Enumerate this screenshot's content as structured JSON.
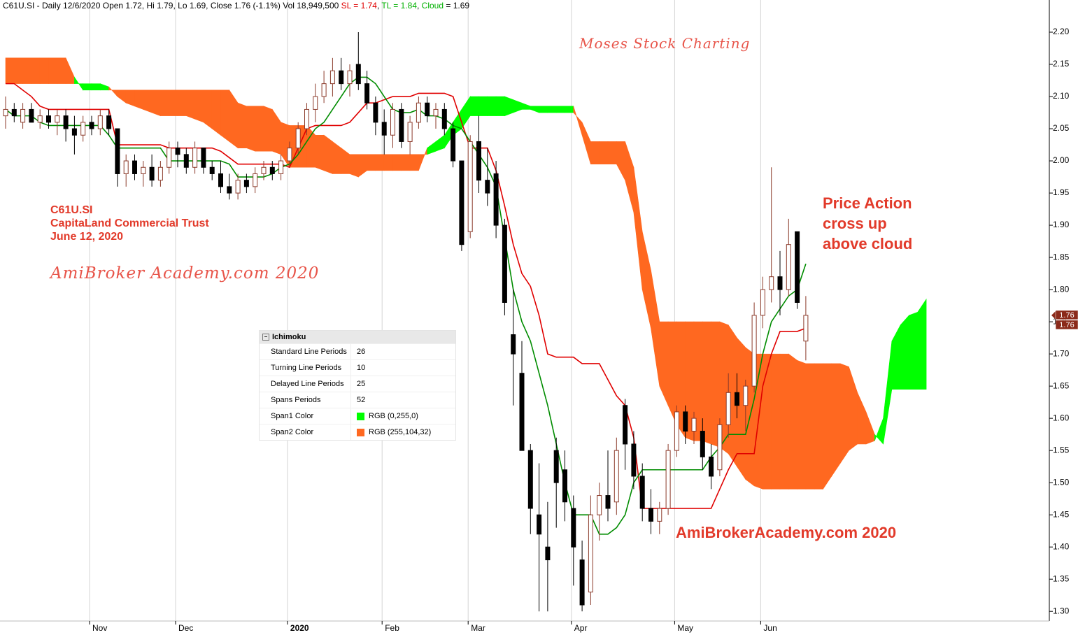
{
  "chart_data": {
    "type": "candlestick",
    "header": {
      "info": "C61U.SI - Daily 12/6/2020 Open 1.72, Hi 1.79, Lo 1.69, Close 1.76 (-1.1%) Vol 18,949,500",
      "sl_value": "= 1.74",
      "tl_value": "= 1.84",
      "cloud_value": "= 1.69"
    },
    "annotations": [
      "Moses Stock Charting",
      "C61U.SI",
      "CapitaLand Commercial Trust",
      "June 12, 2020",
      "AmiBroker Academy.com 2020",
      "Price Action",
      "cross up",
      "above cloud",
      "AmiBrokerAcademy.com 2020"
    ],
    "categories": [
      null,
      null,
      null,
      null,
      null,
      null,
      null,
      null,
      null,
      null,
      "Nov",
      null,
      null,
      null,
      null,
      null,
      null,
      null,
      null,
      null,
      "Dec",
      null,
      null,
      null,
      null,
      null,
      null,
      null,
      null,
      null,
      null,
      null,
      null,
      "2020",
      null,
      null,
      null,
      null,
      null,
      null,
      null,
      null,
      null,
      null,
      "Feb",
      null,
      null,
      null,
      null,
      null,
      null,
      null,
      null,
      null,
      "Mar",
      null,
      null,
      null,
      null,
      null,
      null,
      null,
      null,
      null,
      null,
      null,
      "Apr",
      null,
      null,
      null,
      null,
      null,
      null,
      null,
      null,
      null,
      null,
      null,
      "May",
      null,
      null,
      null,
      null,
      null,
      null,
      null,
      null,
      null,
      "Jun",
      null,
      null,
      null,
      null,
      null,
      null,
      null,
      null,
      null,
      null,
      null,
      null,
      null,
      null,
      null,
      null,
      null,
      null,
      null
    ],
    "open": [
      2.07,
      2.08,
      2.06,
      2.08,
      2.06,
      2.07,
      2.06,
      2.07,
      2.05,
      2.04,
      2.06,
      2.05,
      2.07,
      2.05,
      1.98,
      2.0,
      1.98,
      1.99,
      1.97,
      1.99,
      2.02,
      2.01,
      1.99,
      2.02,
      1.99,
      1.98,
      1.96,
      1.95,
      1.97,
      1.96,
      1.98,
      1.99,
      1.98,
      2.0,
      2.02,
      2.05,
      2.08,
      2.1,
      2.12,
      2.14,
      2.12,
      2.15,
      2.12,
      2.09,
      2.06,
      2.04,
      2.08,
      2.03,
      2.06,
      2.09,
      2.07,
      2.08,
      2.05,
      2.0,
      1.89,
      2.03,
      1.97,
      1.98,
      1.9,
      1.73,
      1.67,
      1.55,
      1.45,
      1.4,
      1.55,
      1.52,
      1.46,
      1.38,
      1.33,
      1.45,
      1.48,
      1.47,
      1.62,
      1.56,
      1.51,
      1.46,
      1.44,
      1.46,
      1.55,
      1.61,
      1.58,
      1.58,
      1.54,
      1.52,
      1.59,
      1.64,
      1.62,
      1.65,
      1.76,
      1.8,
      1.82,
      1.8,
      1.89,
      1.72,
      null,
      null,
      null,
      null,
      null,
      null,
      null,
      null,
      null,
      null,
      null,
      null,
      null,
      null
    ],
    "high": [
      2.1,
      2.09,
      2.09,
      2.09,
      2.08,
      2.08,
      2.08,
      2.08,
      2.07,
      2.07,
      2.07,
      2.08,
      2.08,
      2.05,
      2.01,
      2.01,
      2.0,
      2.01,
      2.0,
      2.03,
      2.03,
      2.02,
      2.03,
      2.02,
      2.0,
      2.0,
      1.98,
      1.98,
      1.98,
      1.99,
      2.0,
      2.0,
      2.01,
      2.03,
      2.06,
      2.09,
      2.12,
      2.14,
      2.16,
      2.16,
      2.15,
      2.2,
      2.14,
      2.1,
      2.08,
      2.09,
      2.09,
      2.07,
      2.1,
      2.1,
      2.09,
      2.09,
      2.06,
      2.0,
      2.04,
      2.07,
      2.02,
      2.0,
      1.91,
      1.8,
      1.72,
      1.56,
      1.53,
      1.47,
      1.57,
      1.55,
      1.48,
      1.41,
      1.48,
      1.5,
      1.55,
      1.57,
      1.63,
      1.58,
      1.53,
      1.49,
      1.47,
      1.56,
      1.62,
      1.62,
      1.61,
      1.6,
      1.56,
      1.6,
      1.67,
      1.67,
      1.66,
      1.78,
      1.82,
      1.99,
      1.86,
      1.91,
      1.89,
      1.79,
      null,
      null,
      null,
      null,
      null,
      null,
      null,
      null,
      null,
      null,
      null,
      null,
      null,
      null
    ],
    "low": [
      2.05,
      2.06,
      2.05,
      2.06,
      2.05,
      2.05,
      2.04,
      2.03,
      2.01,
      2.03,
      2.04,
      2.04,
      2.04,
      1.96,
      1.96,
      1.97,
      1.96,
      1.96,
      1.96,
      1.98,
      1.99,
      1.98,
      1.98,
      1.98,
      1.97,
      1.95,
      1.94,
      1.94,
      1.95,
      1.95,
      1.97,
      1.97,
      1.97,
      1.99,
      2.01,
      2.04,
      2.06,
      2.09,
      2.1,
      2.11,
      2.1,
      2.11,
      2.08,
      2.04,
      2.01,
      2.02,
      2.02,
      2.01,
      2.05,
      2.06,
      2.05,
      2.04,
      1.99,
      1.86,
      1.88,
      1.95,
      1.93,
      1.88,
      1.76,
      1.62,
      1.55,
      1.42,
      1.3,
      1.3,
      1.43,
      1.44,
      1.34,
      1.3,
      1.31,
      1.41,
      1.44,
      1.45,
      1.52,
      1.49,
      1.44,
      1.42,
      1.42,
      1.45,
      1.54,
      1.56,
      1.56,
      1.52,
      1.49,
      1.51,
      1.57,
      1.6,
      1.58,
      1.64,
      1.74,
      1.78,
      1.76,
      1.79,
      1.77,
      1.69,
      null,
      null,
      null,
      null,
      null,
      null,
      null,
      null,
      null,
      null,
      null,
      null,
      null,
      null
    ],
    "close": [
      2.08,
      2.07,
      2.08,
      2.06,
      2.07,
      2.06,
      2.07,
      2.05,
      2.04,
      2.06,
      2.05,
      2.07,
      2.05,
      1.98,
      2.0,
      1.98,
      1.99,
      1.97,
      1.99,
      2.02,
      2.01,
      1.99,
      2.02,
      1.99,
      1.98,
      1.96,
      1.95,
      1.97,
      1.96,
      1.98,
      1.99,
      1.98,
      2.0,
      2.02,
      2.05,
      2.08,
      2.1,
      2.12,
      2.14,
      2.12,
      2.14,
      2.12,
      2.09,
      2.06,
      2.04,
      2.08,
      2.03,
      2.06,
      2.09,
      2.07,
      2.08,
      2.05,
      2.0,
      1.87,
      2.03,
      1.97,
      1.95,
      1.9,
      1.78,
      1.7,
      1.55,
      1.46,
      1.42,
      1.38,
      1.5,
      1.47,
      1.4,
      1.31,
      1.45,
      1.48,
      1.46,
      1.55,
      1.56,
      1.51,
      1.46,
      1.44,
      1.46,
      1.55,
      1.61,
      1.58,
      1.6,
      1.54,
      1.51,
      1.59,
      1.64,
      1.62,
      1.65,
      1.76,
      1.8,
      1.82,
      1.8,
      1.87,
      1.78,
      1.76,
      null,
      null,
      null,
      null,
      null,
      null,
      null,
      null,
      null,
      null,
      null,
      null,
      null,
      null
    ],
    "up_color": "#ffffff",
    "up_outline": "#8b3a2a",
    "down_color": "#000000",
    "series": [
      {
        "name": "SL",
        "color": "#e00000",
        "values": [
          2.12,
          2.12,
          2.11,
          2.1,
          2.085,
          2.08,
          2.08,
          2.08,
          2.08,
          2.08,
          2.08,
          2.08,
          2.08,
          2.025,
          2.025,
          2.025,
          2.025,
          2.025,
          2.025,
          2.02,
          2.02,
          2.02,
          2.02,
          2.02,
          2.02,
          2.015,
          2.005,
          1.995,
          1.995,
          1.995,
          1.995,
          1.995,
          1.995,
          1.99,
          2.02,
          2.05,
          2.055,
          2.055,
          2.055,
          2.055,
          2.06,
          2.075,
          2.09,
          2.09,
          2.095,
          2.1,
          2.1,
          2.1,
          2.105,
          2.105,
          2.105,
          2.105,
          2.1,
          2.06,
          2.02,
          2.02,
          2.02,
          1.985,
          1.93,
          1.87,
          1.825,
          1.805,
          1.76,
          1.7,
          1.695,
          1.695,
          1.695,
          1.685,
          1.685,
          1.685,
          1.66,
          1.635,
          1.62,
          1.57,
          1.46,
          1.46,
          1.46,
          1.46,
          1.46,
          1.46,
          1.46,
          1.46,
          1.46,
          1.49,
          1.52,
          1.545,
          1.545,
          1.545,
          1.65,
          1.7,
          1.735,
          1.735,
          1.735,
          1.74,
          null,
          null,
          null,
          null,
          null,
          null,
          null,
          null,
          null,
          null,
          null,
          null,
          null,
          null
        ]
      },
      {
        "name": "TL",
        "color": "#008c00",
        "values": [
          2.08,
          2.07,
          2.07,
          2.07,
          2.06,
          2.055,
          2.055,
          2.055,
          2.055,
          2.055,
          2.055,
          2.055,
          2.04,
          2.02,
          2.02,
          2.02,
          2.02,
          2.02,
          2.02,
          2.0,
          2.0,
          2.0,
          2.0,
          2.0,
          2.0,
          2.0,
          1.995,
          1.975,
          1.975,
          1.975,
          1.975,
          1.98,
          1.99,
          1.995,
          2.01,
          2.03,
          2.05,
          2.06,
          2.08,
          2.1,
          2.12,
          2.13,
          2.13,
          2.12,
          2.1,
          2.08,
          2.075,
          2.075,
          2.08,
          2.07,
          2.07,
          2.065,
          2.055,
          2.05,
          2.03,
          2.01,
          1.99,
          1.96,
          1.88,
          1.8,
          1.75,
          1.72,
          1.67,
          1.62,
          1.56,
          1.5,
          1.45,
          1.45,
          1.45,
          1.42,
          1.42,
          1.43,
          1.45,
          1.5,
          1.52,
          1.52,
          1.52,
          1.52,
          1.52,
          1.52,
          1.52,
          1.52,
          1.54,
          1.555,
          1.575,
          1.575,
          1.575,
          1.63,
          1.7,
          1.75,
          1.77,
          1.79,
          1.8,
          1.84,
          null,
          null,
          null,
          null,
          null,
          null,
          null,
          null,
          null,
          null,
          null,
          null,
          null,
          null
        ]
      }
    ],
    "cloud": {
      "name": "Cloud",
      "span1": {
        "color": "#00ff00",
        "values": [
          2.12,
          2.12,
          2.12,
          2.12,
          2.12,
          2.12,
          2.12,
          2.12,
          2.12,
          2.12,
          2.12,
          2.12,
          2.115,
          2.1,
          2.09,
          2.085,
          2.08,
          2.075,
          2.07,
          2.07,
          2.07,
          2.07,
          2.065,
          2.06,
          2.05,
          2.04,
          2.03,
          2.02,
          2.02,
          2.015,
          2.015,
          2.015,
          2.01,
          1.99,
          1.99,
          1.99,
          1.99,
          1.985,
          1.98,
          1.98,
          1.98,
          1.975,
          1.985,
          1.985,
          1.985,
          1.985,
          1.985,
          1.985,
          1.985,
          2.02,
          2.03,
          2.04,
          2.06,
          2.08,
          2.1,
          2.1,
          2.1,
          2.1,
          2.1,
          2.095,
          2.09,
          2.085,
          2.085,
          2.085,
          2.085,
          2.085,
          2.085,
          2.04,
          1.995,
          1.995,
          1.995,
          1.995,
          1.97,
          1.92,
          1.8,
          1.74,
          1.65,
          1.62,
          1.59,
          1.57,
          1.565,
          1.565,
          1.56,
          1.555,
          1.545,
          1.525,
          1.505,
          1.495,
          1.49,
          1.49,
          1.49,
          1.49,
          1.49,
          1.49,
          1.49,
          1.49,
          1.51,
          1.53,
          1.55,
          1.56,
          1.56,
          1.565,
          1.6,
          1.72,
          1.745,
          1.76,
          1.765,
          1.785
        ]
      },
      "span2": {
        "color": "#ff6820",
        "values": [
          2.16,
          2.16,
          2.16,
          2.16,
          2.16,
          2.16,
          2.16,
          2.16,
          2.13,
          2.11,
          2.11,
          2.11,
          2.11,
          2.11,
          2.11,
          2.11,
          2.11,
          2.11,
          2.11,
          2.11,
          2.11,
          2.11,
          2.11,
          2.11,
          2.11,
          2.11,
          2.11,
          2.09,
          2.085,
          2.085,
          2.085,
          2.08,
          2.06,
          2.055,
          2.055,
          2.055,
          2.04,
          2.04,
          2.03,
          2.02,
          2.01,
          2.01,
          2.01,
          2.01,
          2.01,
          2.01,
          2.01,
          2.01,
          2.01,
          2.01,
          2.015,
          2.02,
          2.04,
          2.05,
          2.07,
          2.07,
          2.07,
          2.07,
          2.07,
          2.075,
          2.08,
          2.08,
          2.075,
          2.075,
          2.075,
          2.075,
          2.075,
          2.06,
          2.03,
          2.03,
          2.03,
          2.03,
          2.03,
          1.99,
          1.89,
          1.83,
          1.75,
          1.75,
          1.75,
          1.75,
          1.75,
          1.75,
          1.75,
          1.75,
          1.745,
          1.725,
          1.71,
          1.7,
          1.7,
          1.7,
          1.7,
          1.7,
          1.69,
          1.685,
          1.685,
          1.685,
          1.685,
          1.685,
          1.68,
          1.64,
          1.61,
          1.575,
          1.56,
          1.645,
          1.645,
          1.645,
          1.645,
          1.645
        ]
      }
    },
    "ylim": [
      1.285,
      2.25
    ],
    "yticks": [
      {
        "value": 1.3,
        "label": "1.30"
      },
      1.35,
      {
        "value": 1.4,
        "label": "1.40"
      },
      1.45,
      {
        "value": 1.5,
        "label": "1.50"
      },
      1.55,
      {
        "value": 1.6,
        "label": "1.60"
      },
      1.65,
      {
        "value": 1.7,
        "label": "1.70"
      },
      1.75,
      {
        "value": 1.8,
        "label": "1.80"
      },
      1.85,
      {
        "value": 1.9,
        "label": "1.90"
      },
      1.95,
      {
        "value": 2.0,
        "label": "2.00"
      },
      2.05,
      {
        "value": 2.1,
        "label": "2.10"
      },
      2.15,
      {
        "value": 2.2,
        "label": "2.20"
      }
    ],
    "xgrid": true,
    "last_price": {
      "value": 1.76,
      "labels": [
        "1.76",
        "1.76"
      ],
      "color": "#8b2a1a"
    }
  },
  "panel": {
    "title": "Ichimoku",
    "rows": [
      [
        "Standard Line Periods",
        26
      ],
      [
        "Turning Line Periods",
        10
      ],
      [
        "Delayed Line Periods",
        25
      ],
      [
        "Spans Periods",
        52
      ],
      [
        "Span1 Color",
        "RGB (0,255,0)"
      ],
      [
        "Span2 Color",
        "RGB (255,104,32)"
      ]
    ]
  }
}
